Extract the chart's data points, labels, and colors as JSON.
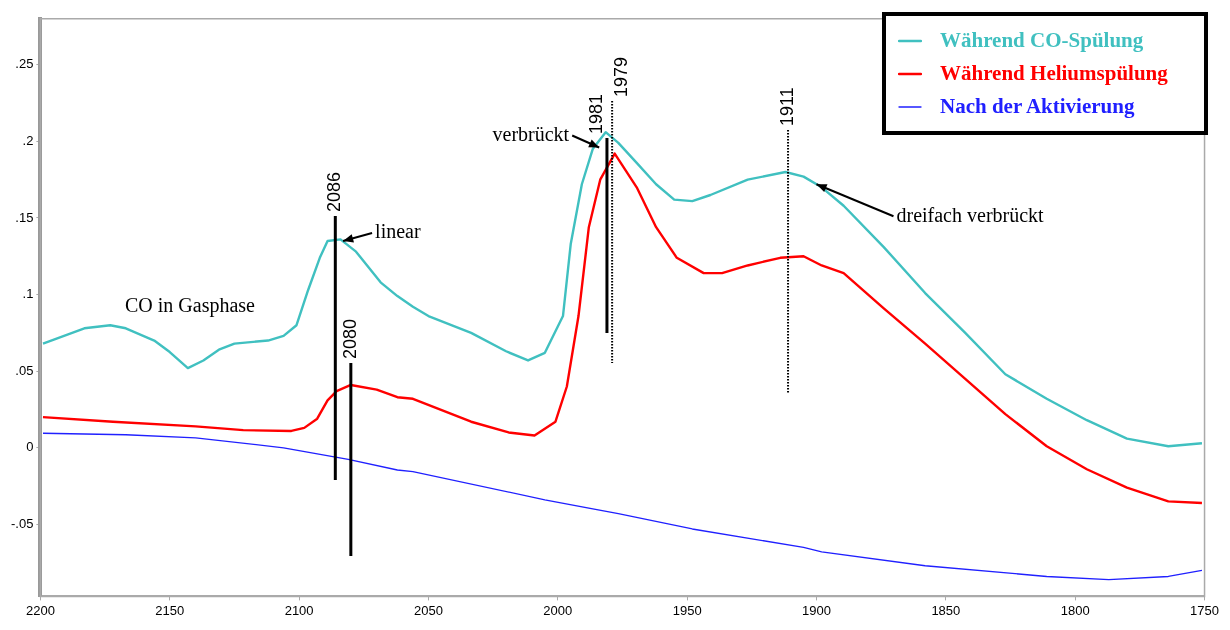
{
  "chart_data": {
    "type": "line",
    "xlim": [
      2200,
      1750
    ],
    "xticks": [
      2200,
      2150,
      2100,
      2050,
      2000,
      1950,
      1900,
      1850,
      1800,
      1750
    ],
    "ylim": [
      -0.097,
      0.28
    ],
    "yticks": [
      {
        "value": -0.05,
        "label": "-.05"
      },
      0,
      {
        "value": 0.05,
        "label": ".05"
      },
      {
        "value": 0.1,
        "label": ".1"
      },
      {
        "value": 0.15,
        "label": ".15"
      },
      {
        "value": 0.2,
        "label": ".2"
      },
      {
        "value": 0.25,
        "label": ".25"
      }
    ],
    "legend": "top right",
    "marker": "none",
    "line_style": "solid",
    "series": [
      {
        "name": "Während CO-Spülung",
        "color": "#40c0c0",
        "x": [
          2199,
          2183,
          2173,
          2167,
          2156,
          2150,
          2143,
          2137,
          2131,
          2125,
          2112,
          2106,
          2101,
          2096.5,
          2092,
          2089,
          2084,
          2078,
          2068.5,
          2062,
          2056,
          2050,
          2033.5,
          2020,
          2011.5,
          2005,
          1998,
          1995,
          1990.7,
          1986.5,
          1981.5,
          1976.6,
          1969.5,
          1962,
          1955,
          1948,
          1941,
          1926.6,
          1912,
          1905,
          1898,
          1889.5,
          1874,
          1858,
          1842.5,
          1827,
          1811,
          1795.5,
          1780,
          1764,
          1751
        ],
        "values": [
          0.068,
          0.078,
          0.08,
          0.078,
          0.07,
          0.0625,
          0.052,
          0.057,
          0.064,
          0.068,
          0.07,
          0.073,
          0.08,
          0.103,
          0.124,
          0.135,
          0.136,
          0.128,
          0.108,
          0.099,
          0.092,
          0.086,
          0.075,
          0.063,
          0.057,
          0.062,
          0.086,
          0.133,
          0.172,
          0.195,
          0.206,
          0.199,
          0.186,
          0.172,
          0.162,
          0.161,
          0.165,
          0.175,
          0.18,
          0.177,
          0.17,
          0.158,
          0.131,
          0.101,
          0.075,
          0.048,
          0.032,
          0.018,
          0.006,
          0.001,
          0.003
        ]
      },
      {
        "name": "Während Heliumspülung",
        "color": "#ff0000",
        "x": [
          2199,
          2172,
          2140,
          2121.6,
          2103,
          2098,
          2093,
          2089,
          2085.5,
          2080,
          2070,
          2062,
          2056,
          2033.5,
          2019,
          2009,
          2000.9,
          1996.5,
          1992,
          1988,
          1983.6,
          1978,
          1969.5,
          1962,
          1954,
          1943.6,
          1936.5,
          1926.6,
          1914,
          1905,
          1898,
          1889.5,
          1874,
          1858,
          1842.5,
          1827,
          1811,
          1795.5,
          1780,
          1764,
          1751
        ],
        "values": [
          0.02,
          0.017,
          0.014,
          0.0115,
          0.011,
          0.013,
          0.019,
          0.031,
          0.037,
          0.041,
          0.038,
          0.033,
          0.032,
          0.017,
          0.01,
          0.008,
          0.017,
          0.04,
          0.086,
          0.144,
          0.175,
          0.192,
          0.17,
          0.144,
          0.124,
          0.114,
          0.114,
          0.119,
          0.124,
          0.125,
          0.119,
          0.114,
          0.091,
          0.068,
          0.045,
          0.022,
          0.001,
          -0.014,
          -0.026,
          -0.035,
          -0.036
        ]
      },
      {
        "name": "Nach der Aktivierung",
        "color": "#2020ff",
        "x": [
          2199,
          2167,
          2140,
          2106,
          2081,
          2062,
          2056,
          2005,
          1976.6,
          1948,
          1905,
          1898,
          1858,
          1811,
          1787,
          1764,
          1751
        ],
        "values": [
          0.0095,
          0.0085,
          0.0065,
          0,
          -0.0075,
          -0.0145,
          -0.0155,
          -0.034,
          -0.043,
          -0.053,
          -0.065,
          -0.068,
          -0.077,
          -0.084,
          -0.086,
          -0.084,
          -0.08
        ]
      }
    ],
    "ref_lines": [
      {
        "axis": "x",
        "value": 2086,
        "label": "2086",
        "line_style": "solid"
      },
      {
        "axis": "x",
        "value": 2080,
        "label": "2080",
        "line_style": "solid"
      },
      {
        "axis": "x",
        "value": 1979,
        "label": "1979",
        "line_style": "dotted"
      },
      {
        "axis": "x",
        "value": 1981,
        "label": "1981",
        "line_style": "solid"
      },
      {
        "axis": "x",
        "value": 1911,
        "label": "1911",
        "line_style": "dotted"
      }
    ],
    "annotations": [
      "CO in Gasphase",
      {
        "text": "linear",
        "x": 2083,
        "y": 0.135
      },
      {
        "text": "verbrückt",
        "x": 1984,
        "y": 0.196
      },
      {
        "text": "dreifach verbrückt",
        "x": 1900,
        "y": 0.172
      }
    ]
  }
}
